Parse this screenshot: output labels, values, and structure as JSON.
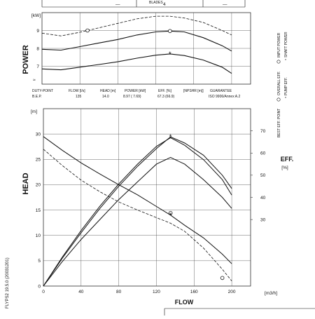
{
  "header": {
    "left_value": "—",
    "mid_label": "BLADES",
    "mid_value": "4",
    "right_value": "—"
  },
  "side_code": "FLYPS2 19.5.0 (20031201)",
  "duty_table": {
    "headers": [
      "DUTY-POINT",
      "FLOW [l/s]",
      "HEAD [m]",
      "POWER [kW]",
      "EFF. [%]",
      "[NPSHR [m]]",
      "GUARANTEE"
    ],
    "row_label": "B.E.P.",
    "values": [
      "135",
      "14.0",
      "8.97 ( 7.69)",
      "67.3 (66.9)",
      "",
      "ISO 9906/Annex A.2"
    ]
  },
  "power_legend": [
    "INPUT POWER",
    "SHAFT POWER"
  ],
  "eff_legend": [
    "OVERALL EFF.",
    "PUMP EFF."
  ],
  "head_legend": "BEST EFF. POINT",
  "eff_axis_label": "EFF.",
  "eff_axis_unit": "[%]",
  "chart_data": [
    {
      "type": "line",
      "ylabel": "POWER",
      "yunit": "[kW]",
      "xlim": [
        0,
        220
      ],
      "ylim": [
        6,
        10
      ],
      "yticks": [
        "7",
        "8",
        "9"
      ],
      "series": [
        {
          "style": "dashed",
          "x": [
            0,
            20,
            40,
            60,
            80,
            100,
            120,
            135,
            150,
            170,
            190,
            200
          ],
          "y": [
            8.85,
            8.7,
            8.9,
            9.15,
            9.4,
            9.65,
            9.8,
            9.8,
            9.7,
            9.45,
            9.0,
            8.75
          ]
        },
        {
          "style": "solid",
          "x": [
            0,
            20,
            40,
            60,
            80,
            100,
            120,
            135,
            150,
            170,
            190,
            200
          ],
          "y": [
            7.95,
            7.9,
            8.1,
            8.3,
            8.5,
            8.75,
            8.92,
            8.97,
            8.92,
            8.6,
            8.15,
            7.85
          ]
        },
        {
          "style": "solid",
          "x": [
            0,
            20,
            40,
            60,
            80,
            100,
            120,
            135,
            150,
            170,
            190,
            200
          ],
          "y": [
            6.85,
            6.8,
            6.95,
            7.1,
            7.25,
            7.45,
            7.62,
            7.69,
            7.6,
            7.35,
            6.95,
            6.6
          ]
        }
      ],
      "markers": [
        {
          "x": 135,
          "y": 8.97,
          "symbol": "o"
        },
        {
          "x": 135,
          "y": 7.69,
          "symbol": "*"
        },
        {
          "x": 48,
          "y": 9.0,
          "symbol": "o"
        }
      ]
    },
    {
      "type": "line",
      "xlabel": "FLOW",
      "xunit": "[m3/h]",
      "ylabel": "HEAD",
      "yunit": "[m]",
      "xlim": [
        0,
        220
      ],
      "ylim": [
        0,
        35
      ],
      "xticks": [
        "0",
        "40",
        "80",
        "120",
        "160",
        "200"
      ],
      "yticks": [
        "0",
        "5",
        "10",
        "15",
        "20",
        "25",
        "30"
      ],
      "y2_ticks": [
        "30",
        "40",
        "50",
        "60",
        "70"
      ],
      "y2lim": [
        0,
        80
      ],
      "series": [
        {
          "style": "solid",
          "x": [
            0,
            20,
            40,
            60,
            80,
            100,
            120,
            135,
            150,
            170,
            190,
            200
          ],
          "y": [
            29.5,
            26.8,
            24.3,
            22.1,
            20.0,
            18.0,
            15.7,
            14.0,
            12.0,
            9.5,
            6.3,
            4.4
          ]
        },
        {
          "style": "dashed",
          "x": [
            0,
            20,
            40,
            60,
            80,
            100,
            120,
            135,
            150,
            170,
            190,
            200
          ],
          "y": [
            27.0,
            23.8,
            20.9,
            18.6,
            16.6,
            15.0,
            13.5,
            12.4,
            10.8,
            7.5,
            3.3,
            1.0
          ]
        },
        {
          "style": "solid",
          "x": [
            0,
            20,
            40,
            60,
            80,
            100,
            120,
            135,
            150,
            170,
            190,
            200
          ],
          "y": [
            0,
            11,
            21,
            30,
            39,
            47,
            55,
            58,
            55,
            48,
            40,
            35
          ]
        },
        {
          "style": "solid",
          "x": [
            0,
            20,
            40,
            60,
            80,
            100,
            120,
            135,
            150,
            170,
            190,
            200
          ],
          "y": [
            0,
            12.5,
            24,
            35,
            45,
            54,
            62,
            67.3,
            64.5,
            59,
            50,
            44
          ]
        },
        {
          "style": "solid",
          "x": [
            0,
            20,
            40,
            60,
            80,
            100,
            120,
            135,
            150,
            170,
            190,
            200
          ],
          "y": [
            0,
            13,
            25,
            36,
            46,
            55,
            63,
            66.9,
            63.5,
            57,
            48,
            41
          ]
        }
      ],
      "markers": [
        {
          "x": 135,
          "y": 67.3,
          "axis": "y2",
          "symbol": "*"
        },
        {
          "x": 135,
          "y": 14.4,
          "axis": "y",
          "symbol": "o"
        },
        {
          "x": 135,
          "y": 14.0,
          "axis": "y",
          "symbol": "*"
        },
        {
          "x": 190,
          "y": 1.6,
          "axis": "y",
          "symbol": "o"
        }
      ]
    }
  ]
}
